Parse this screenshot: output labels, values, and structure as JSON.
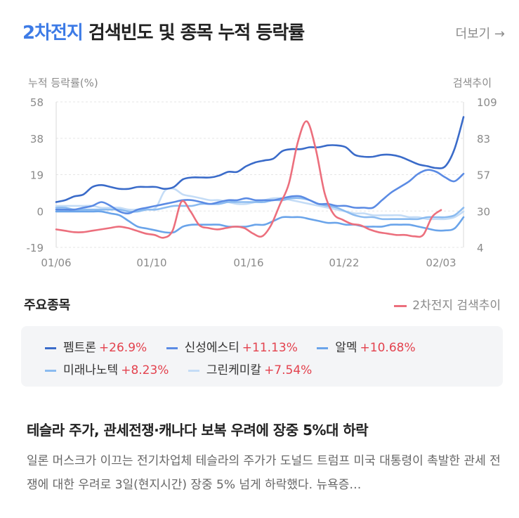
{
  "header": {
    "keyword": "2차전지",
    "title_rest": "검색빈도 및 종목 누적 등락률",
    "more_label": "더보기 →"
  },
  "section": {
    "title": "주요종목",
    "keyword_legend": "2차전지 검색추이"
  },
  "chart_data": {
    "type": "line",
    "left_axis_label": "누적 등락률(%)",
    "right_axis_label": "검색추이",
    "left_ticks": [
      "58",
      "38",
      "19",
      "0",
      "-19"
    ],
    "right_ticks": [
      "109",
      "83",
      "57",
      "30",
      "4"
    ],
    "ylim_left": [
      -19,
      58
    ],
    "ylim_right": [
      4,
      109
    ],
    "x_ticks": [
      "01/06",
      "01/10",
      "01/16",
      "01/22",
      "02/03"
    ],
    "grid": true,
    "series": [
      {
        "name": "펨트론",
        "change": "+26.9%",
        "axis": "left",
        "color": "#3a6bc9",
        "values": [
          5,
          6,
          8,
          9,
          13,
          14,
          13,
          12,
          12,
          13,
          13,
          13,
          12,
          13,
          17,
          18,
          18,
          18,
          19,
          21,
          21,
          24,
          26,
          27,
          28,
          32,
          33,
          33,
          34,
          34,
          35,
          35,
          34,
          30,
          29,
          29,
          30,
          30,
          29,
          27,
          25,
          24,
          23,
          24,
          33,
          50
        ]
      },
      {
        "name": "신성에스티",
        "change": "+11.13%",
        "axis": "left",
        "color": "#5b8be4",
        "values": [
          1,
          1,
          1,
          2,
          3,
          5,
          3,
          0,
          -1,
          1,
          2,
          3,
          4,
          5,
          6,
          6,
          5,
          4,
          5,
          6,
          6,
          7,
          6,
          6,
          6,
          7,
          8,
          8,
          6,
          4,
          4,
          3,
          3,
          2,
          2,
          2,
          6,
          10,
          13,
          16,
          20,
          22,
          21,
          18,
          16,
          20
        ]
      },
      {
        "name": "알멕",
        "change": "+10.68%",
        "axis": "left",
        "color": "#6aa4ea",
        "values": [
          0,
          0,
          0,
          0,
          0,
          0,
          -1,
          -2,
          -5,
          -8,
          -9,
          -10,
          -11,
          -11,
          -8,
          -7,
          -7,
          -7,
          -7,
          -8,
          -8,
          -8,
          -7,
          -7,
          -5,
          -3,
          -3,
          -3,
          -4,
          -5,
          -6,
          -6,
          -7,
          -7,
          -8,
          -8,
          -8,
          -7,
          -7,
          -7,
          -8,
          -9,
          -10,
          -10,
          -9,
          -3
        ]
      },
      {
        "name": "미래나노텍",
        "change": "+8.23%",
        "axis": "left",
        "color": "#8bbbf0",
        "values": [
          2,
          2,
          1,
          1,
          1,
          1,
          1,
          1,
          0,
          0,
          1,
          1,
          2,
          3,
          3,
          3,
          4,
          4,
          4,
          5,
          5,
          5,
          5,
          5,
          6,
          6,
          7,
          7,
          6,
          4,
          3,
          2,
          0,
          -2,
          -3,
          -3,
          -4,
          -4,
          -4,
          -4,
          -4,
          -3,
          -3,
          -3,
          -2,
          2
        ]
      },
      {
        "name": "그린케미칼",
        "change": "+7.54%",
        "axis": "left",
        "color": "#c4dcf6",
        "values": [
          3,
          3,
          3,
          3,
          3,
          2,
          2,
          2,
          1,
          1,
          1,
          2,
          11,
          12,
          9,
          8,
          7,
          6,
          6,
          5,
          4,
          4,
          5,
          6,
          7,
          7,
          6,
          5,
          4,
          3,
          2,
          1,
          0,
          -1,
          -1,
          -2,
          -2,
          -2,
          -2,
          -3,
          -3,
          -4,
          -4,
          -4,
          -3,
          0
        ]
      },
      {
        "name": "2차전지 검색추이",
        "axis": "right",
        "color": "#ec6f7d",
        "values": [
          17,
          16,
          15,
          15,
          16,
          17,
          18,
          19,
          18,
          16,
          14,
          13,
          11,
          16,
          37,
          30,
          20,
          18,
          17,
          18,
          19,
          18,
          14,
          12,
          20,
          35,
          50,
          80,
          95,
          75,
          43,
          28,
          24,
          21,
          20,
          17,
          15,
          14,
          13,
          13,
          12,
          13,
          26,
          31
        ]
      }
    ]
  },
  "legend_rows": [
    [
      {
        "name": "펨트론",
        "change": "+26.9%",
        "color": "#3a6bc9"
      },
      {
        "name": "신성에스티",
        "change": "+11.13%",
        "color": "#5b8be4"
      },
      {
        "name": "알멕",
        "change": "+10.68%",
        "color": "#6aa4ea"
      }
    ],
    [
      {
        "name": "미래나노텍",
        "change": "+8.23%",
        "color": "#8bbbf0"
      },
      {
        "name": "그린케미칼",
        "change": "+7.54%",
        "color": "#c4dcf6"
      }
    ]
  ],
  "news": {
    "title": "테슬라 주가, 관세전쟁·캐나다 보복 우려에 장중 5%대 하락",
    "body": "일론 머스크가 이끄는 전기차업체 테슬라의 주가가 도널드 트럼프 미국 대통령이 촉발한 관세 전쟁에 대한 우려로 3일(현지시간) 장중 5% 넘게 하락했다. 뉴욕증…"
  }
}
